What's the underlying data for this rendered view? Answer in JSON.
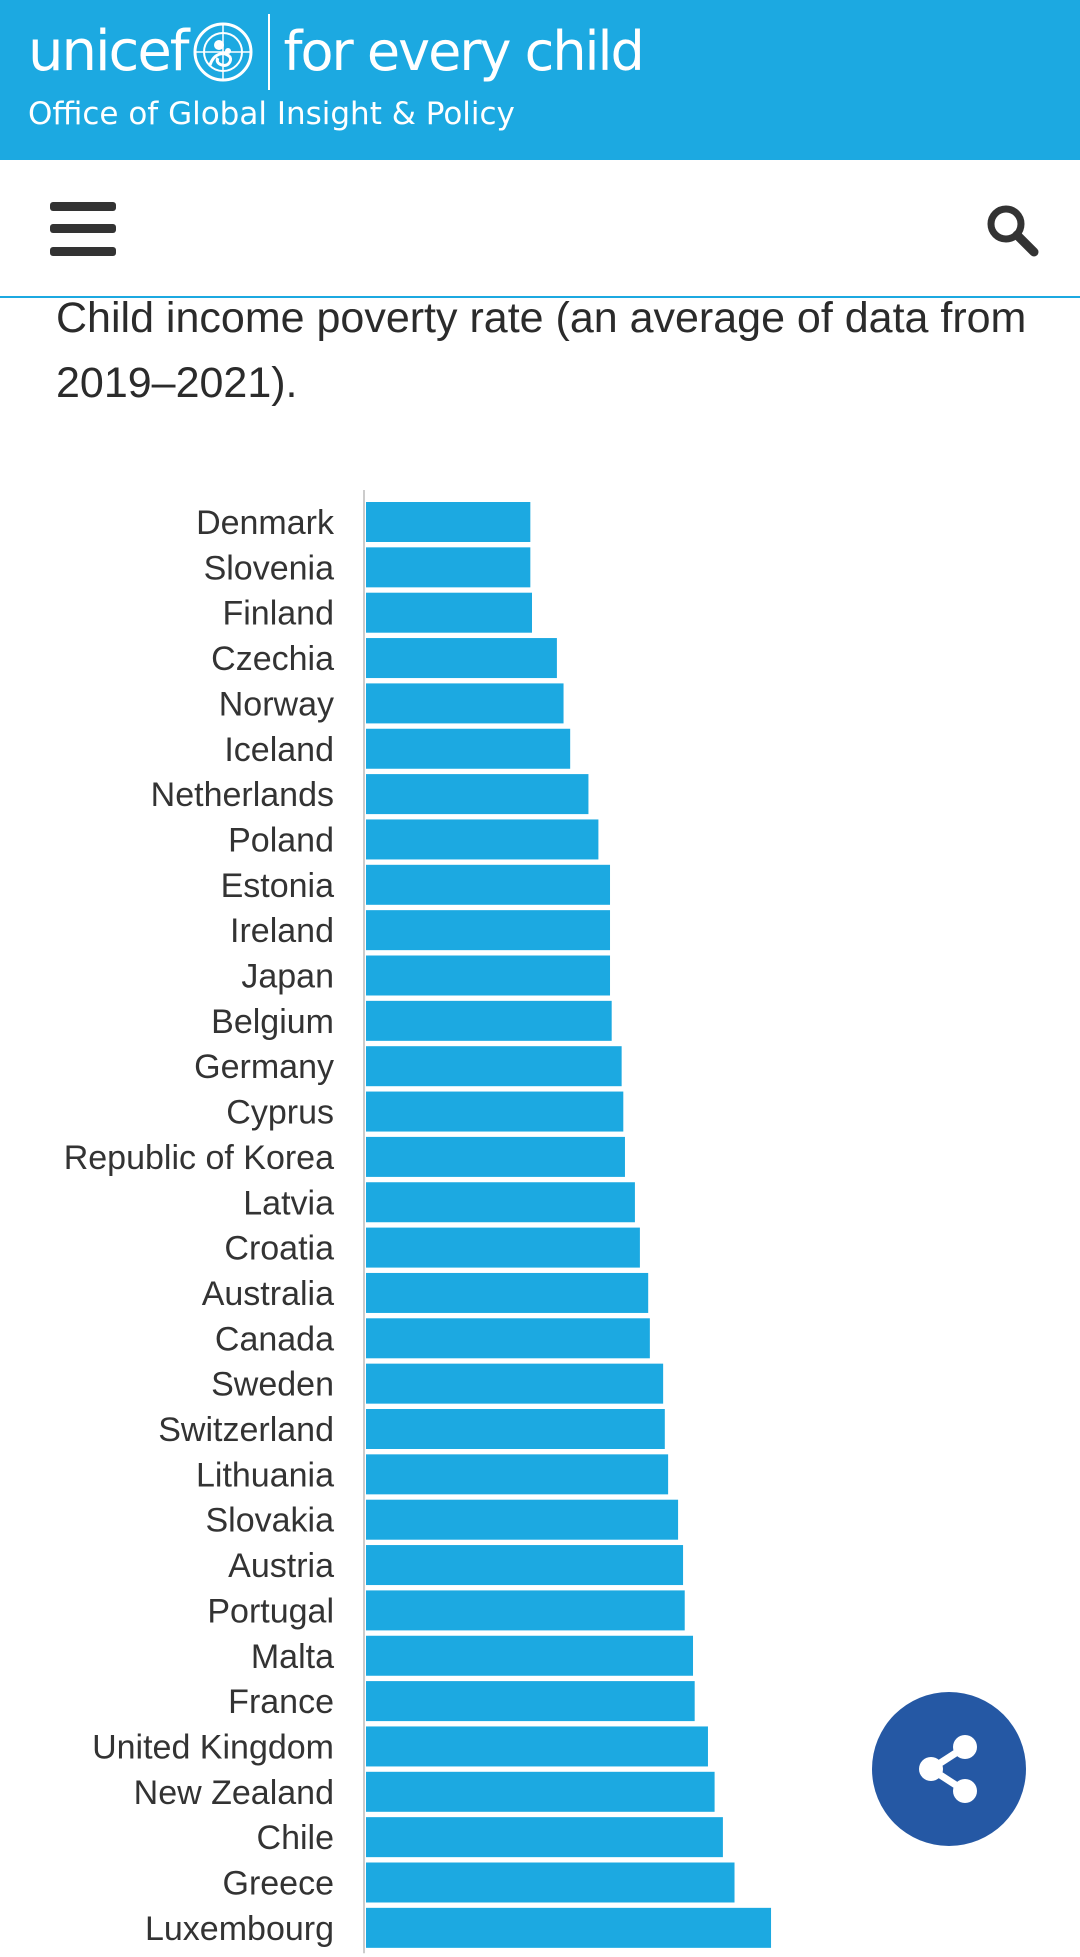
{
  "header": {
    "brand_name": "unicef",
    "brand_tagline": "for every child",
    "office_name": "Office of Global Insight & Policy",
    "brand_color": "#1ca9e1",
    "logo_icon": "unicef-emblem-icon"
  },
  "nav": {
    "menu_icon": "hamburger-menu-icon",
    "search_icon": "search-icon"
  },
  "content": {
    "caption": "Child income poverty rate (an average of data from 2019–2021)."
  },
  "chart_data": {
    "type": "bar",
    "orientation": "horizontal",
    "categories": [
      "Denmark",
      "Slovenia",
      "Finland",
      "Czechia",
      "Norway",
      "Iceland",
      "Netherlands",
      "Poland",
      "Estonia",
      "Ireland",
      "Japan",
      "Belgium",
      "Germany",
      "Cyprus",
      "Republic of Korea",
      "Latvia",
      "Croatia",
      "Australia",
      "Canada",
      "Sweden",
      "Switzerland",
      "Lithuania",
      "Slovakia",
      "Austria",
      "Portugal",
      "Malta",
      "France",
      "United Kingdom",
      "New Zealand",
      "Chile",
      "Greece",
      "Luxembourg"
    ],
    "values": [
      9.9,
      9.9,
      10.0,
      11.5,
      11.9,
      12.3,
      13.4,
      14.0,
      14.7,
      14.7,
      14.7,
      14.8,
      15.4,
      15.5,
      15.6,
      16.2,
      16.5,
      17.0,
      17.1,
      17.9,
      18.0,
      18.2,
      18.8,
      19.1,
      19.2,
      19.7,
      19.8,
      20.6,
      21.0,
      21.5,
      22.2,
      24.4
    ],
    "bar_color": "#1ca9e1",
    "xlim": [
      0,
      30
    ],
    "grid": false,
    "legend": "none",
    "title": "",
    "xlabel": "",
    "ylabel": ""
  },
  "share": {
    "icon": "share-icon",
    "color": "#2558a4"
  }
}
